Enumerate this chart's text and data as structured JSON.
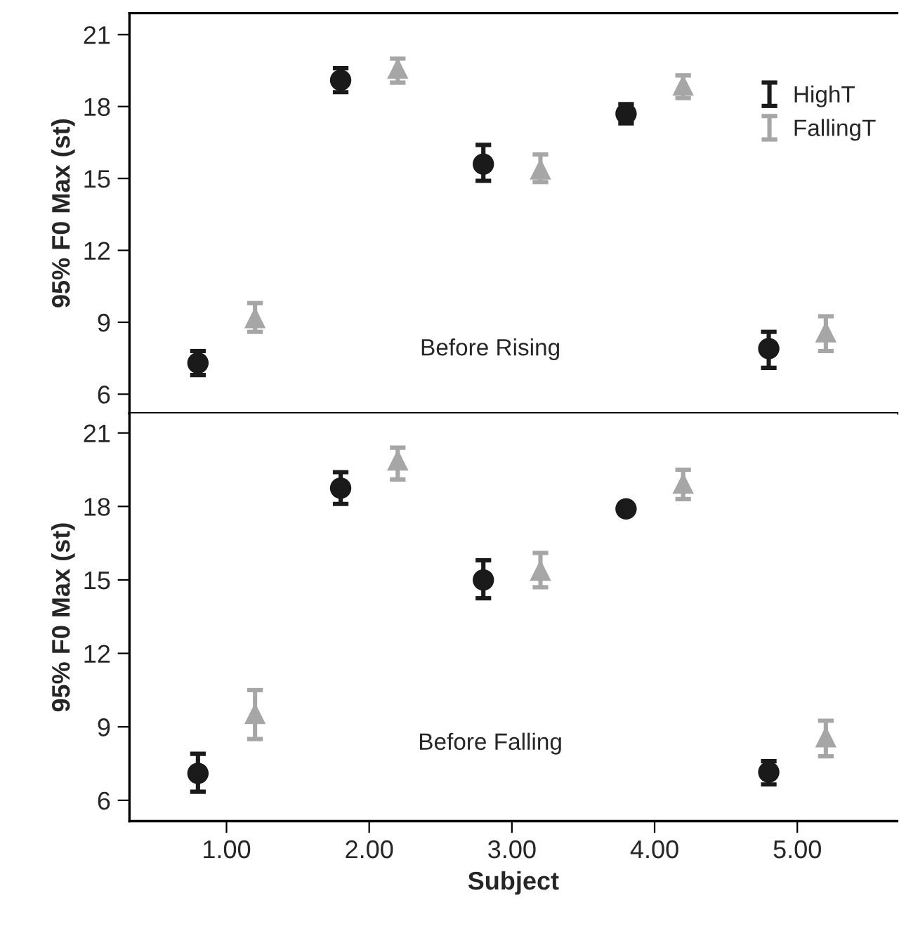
{
  "chart_data": [
    {
      "type": "scatter",
      "ylabel": "95% F0 Max (st)",
      "annotations": [
        "Before Rising"
      ],
      "xlim": [
        0.32,
        5.7
      ],
      "ylim": [
        5.2,
        21.9
      ],
      "yticks": [
        6,
        9,
        12,
        15,
        18,
        21
      ],
      "tick_labels": "y",
      "legend": "right",
      "grid": false,
      "series": [
        {
          "name": "HighT",
          "color": "#1a1a1a",
          "marker": "circle",
          "x": [
            0.8,
            1.8,
            2.8,
            3.8,
            4.8
          ],
          "values": [
            7.3,
            19.1,
            15.6,
            17.7,
            7.9
          ],
          "errors": [
            [
              6.8,
              7.8
            ],
            [
              18.6,
              19.6
            ],
            [
              14.9,
              16.4
            ],
            [
              17.3,
              18.1
            ],
            [
              7.1,
              8.6
            ]
          ]
        },
        {
          "name": "FallingT",
          "color": "#a6a6a6",
          "marker": "triangle",
          "x": [
            1.2,
            2.2,
            3.2,
            4.2,
            5.2
          ],
          "values": [
            9.2,
            19.6,
            15.4,
            18.9,
            8.6
          ],
          "errors": [
            [
              8.6,
              9.8
            ],
            [
              19.0,
              20.0
            ],
            [
              14.85,
              16.0
            ],
            [
              18.35,
              19.3
            ],
            [
              7.8,
              9.25
            ]
          ]
        }
      ]
    },
    {
      "type": "scatter",
      "xlabel": "Subject",
      "ylabel": "95% F0 Max (st)",
      "annotations": [
        "Before Falling"
      ],
      "xlim": [
        0.32,
        5.7
      ],
      "xticks": [
        {
          "value": 1,
          "label": "1.00"
        },
        {
          "value": 2,
          "label": "2.00"
        },
        {
          "value": 3,
          "label": "3.00"
        },
        {
          "value": 4,
          "label": "4.00"
        },
        {
          "value": 5,
          "label": "5.00"
        }
      ],
      "ylim": [
        5.15,
        21.8
      ],
      "yticks": [
        6,
        9,
        12,
        15,
        18,
        21
      ],
      "grid": false,
      "series": [
        {
          "color": "#1a1a1a",
          "marker": "circle",
          "x": [
            0.8,
            1.8,
            2.8,
            3.8,
            4.8
          ],
          "values": [
            7.1,
            18.75,
            15.0,
            17.9,
            7.15
          ],
          "errors": [
            [
              6.35,
              7.9
            ],
            [
              18.1,
              19.4
            ],
            [
              14.25,
              15.8
            ],
            null,
            [
              6.65,
              7.6
            ]
          ]
        },
        {
          "color": "#a6a6a6",
          "marker": "triangle",
          "x": [
            1.2,
            2.2,
            3.2,
            4.2,
            5.2
          ],
          "values": [
            9.55,
            19.9,
            15.4,
            18.95,
            8.6
          ],
          "errors": [
            [
              8.5,
              10.5
            ],
            [
              19.1,
              20.4
            ],
            [
              14.7,
              16.1
            ],
            [
              18.3,
              19.5
            ],
            [
              7.8,
              9.25
            ]
          ]
        }
      ]
    }
  ]
}
